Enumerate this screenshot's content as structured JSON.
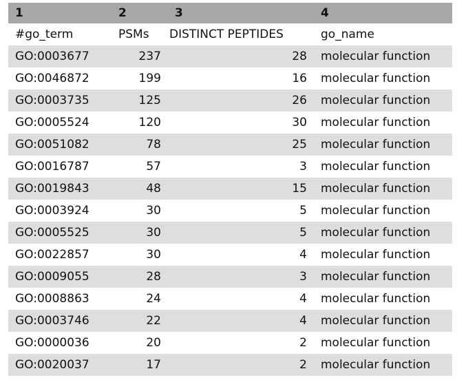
{
  "columns": {
    "index": [
      "1",
      "2",
      "3",
      "4"
    ],
    "names": [
      "#go_term",
      "PSMs",
      "DISTINCT PEPTIDES",
      "go_name"
    ]
  },
  "rows": [
    {
      "go_term": "GO:0003677",
      "psms": "237",
      "peptides": "28",
      "go_name": "molecular function"
    },
    {
      "go_term": "GO:0046872",
      "psms": "199",
      "peptides": "16",
      "go_name": "molecular function"
    },
    {
      "go_term": "GO:0003735",
      "psms": "125",
      "peptides": "26",
      "go_name": "molecular function"
    },
    {
      "go_term": "GO:0005524",
      "psms": "120",
      "peptides": "30",
      "go_name": "molecular function"
    },
    {
      "go_term": "GO:0051082",
      "psms": "78",
      "peptides": "25",
      "go_name": "molecular function"
    },
    {
      "go_term": "GO:0016787",
      "psms": "57",
      "peptides": "3",
      "go_name": "molecular function"
    },
    {
      "go_term": "GO:0019843",
      "psms": "48",
      "peptides": "15",
      "go_name": "molecular function"
    },
    {
      "go_term": "GO:0003924",
      "psms": "30",
      "peptides": "5",
      "go_name": "molecular function"
    },
    {
      "go_term": "GO:0005525",
      "psms": "30",
      "peptides": "5",
      "go_name": "molecular function"
    },
    {
      "go_term": "GO:0022857",
      "psms": "30",
      "peptides": "4",
      "go_name": "molecular function"
    },
    {
      "go_term": "GO:0009055",
      "psms": "28",
      "peptides": "3",
      "go_name": "molecular function"
    },
    {
      "go_term": "GO:0008863",
      "psms": "24",
      "peptides": "4",
      "go_name": "molecular function"
    },
    {
      "go_term": "GO:0003746",
      "psms": "22",
      "peptides": "4",
      "go_name": "molecular function"
    },
    {
      "go_term": "GO:0000036",
      "psms": "20",
      "peptides": "2",
      "go_name": "molecular function"
    },
    {
      "go_term": "GO:0020037",
      "psms": "17",
      "peptides": "2",
      "go_name": "molecular function"
    }
  ],
  "colors": {
    "index_header_bg": "#a8a8a8",
    "row_odd_bg": "#dedede",
    "row_even_bg": "#ffffff"
  }
}
